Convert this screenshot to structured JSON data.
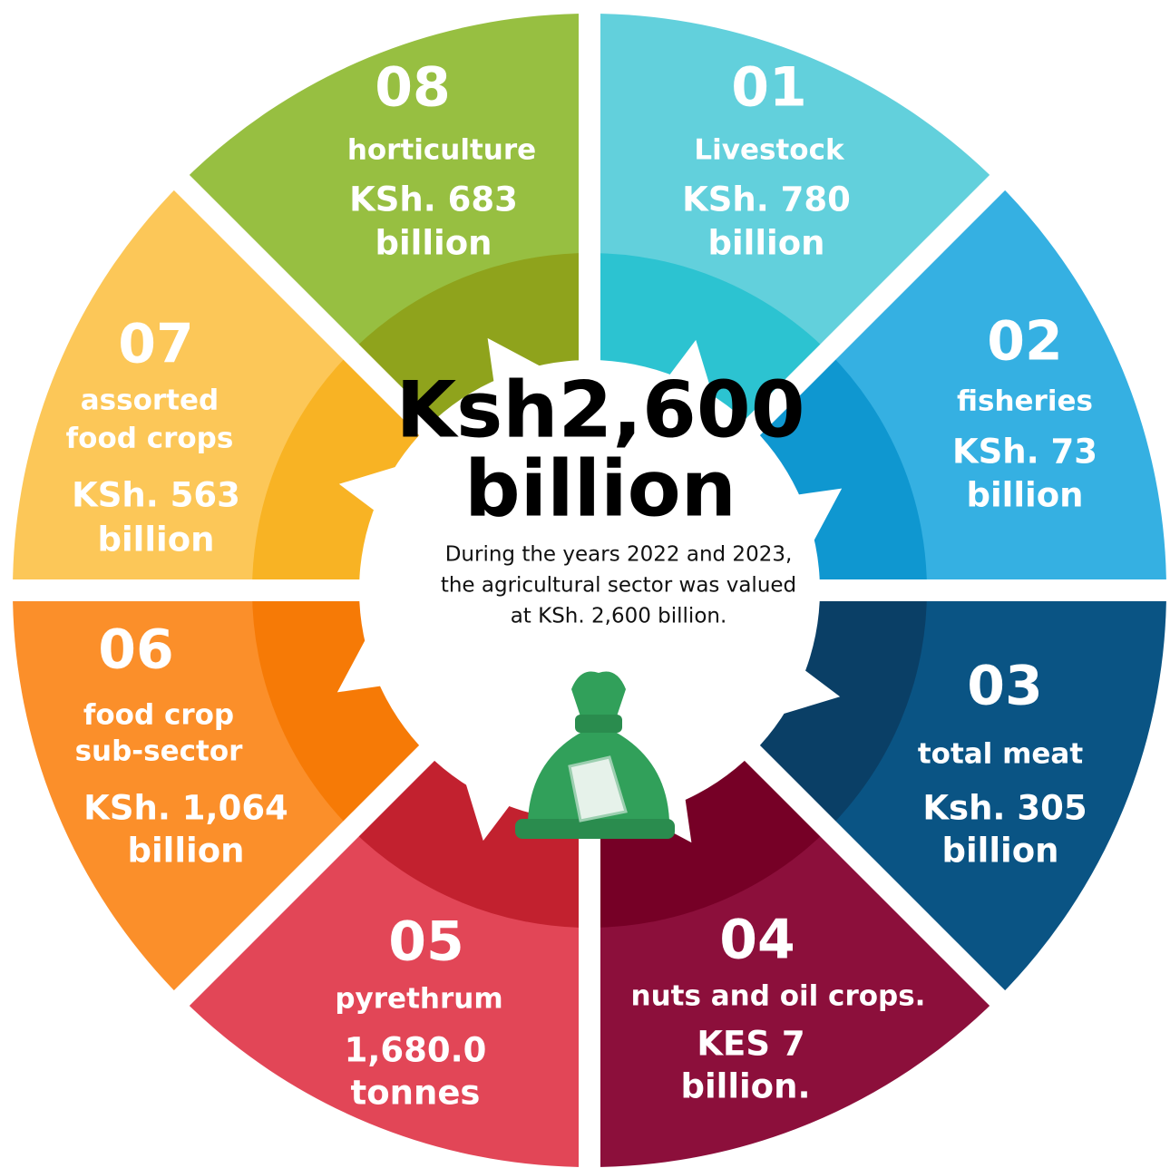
{
  "center": {
    "title": [
      "Ksh2,600",
      "billion"
    ],
    "description": [
      "During the years 2022 and 2023,",
      "the agricultural sector was valued",
      "at KSh. 2,600 billion."
    ]
  },
  "segments": [
    {
      "number": "01",
      "label": [
        "Livestock"
      ],
      "value": [
        "KSh. 780",
        "billion"
      ]
    },
    {
      "number": "02",
      "label": [
        "fisheries"
      ],
      "value": [
        "KSh. 73",
        "billion"
      ]
    },
    {
      "number": "03",
      "label": [
        "total meat"
      ],
      "value": [
        "Ksh. 305",
        "billion"
      ]
    },
    {
      "number": "04",
      "label": [
        "nuts and oil crops."
      ],
      "value": [
        "KES 7",
        "billion."
      ]
    },
    {
      "number": "05",
      "label": [
        "pyrethrum"
      ],
      "value": [
        "1,680.0",
        "tonnes"
      ]
    },
    {
      "number": "06",
      "label": [
        "food crop",
        "sub-sector"
      ],
      "value": [
        "KSh. 1,064",
        "billion"
      ]
    },
    {
      "number": "07",
      "label": [
        "assorted",
        "food crops"
      ],
      "value": [
        "KSh. 563",
        "billion"
      ]
    },
    {
      "number": "08",
      "label": [
        "horticulture"
      ],
      "value": [
        "KSh. 683",
        "billion"
      ]
    }
  ]
}
